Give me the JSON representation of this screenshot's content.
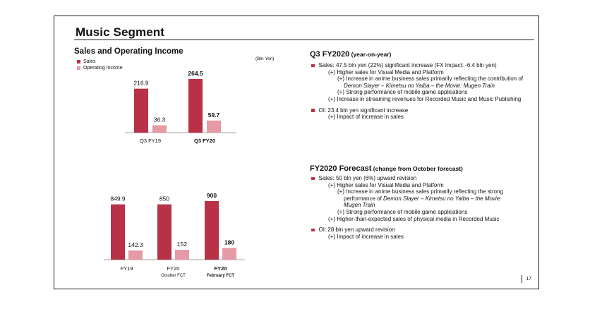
{
  "slide": {
    "title": "Music Segment",
    "section_title": "Sales and Operating Income",
    "unit": "(Bln Yen)",
    "page_number": "17"
  },
  "legend": [
    {
      "label": "Sales",
      "color": "#b83146"
    },
    {
      "label": "Operating Income",
      "color": "#e59aa5"
    }
  ],
  "chart_data": [
    {
      "type": "bar",
      "categories": [
        "Q3 FY19",
        "Q3 FY20"
      ],
      "category_bold": [
        false,
        true
      ],
      "series": [
        {
          "name": "Sales",
          "values": [
            216.9,
            264.5
          ],
          "labels": [
            "216.9",
            "264.5"
          ],
          "color": "#b83146"
        },
        {
          "name": "Operating Income",
          "values": [
            36.3,
            59.7
          ],
          "labels": [
            "36.3",
            "59.7"
          ],
          "color": "#e59aa5"
        }
      ]
    },
    {
      "type": "bar",
      "categories": [
        "FY19",
        "FY20",
        "FY20"
      ],
      "category_sub": [
        "",
        "October FCT",
        "February FCT"
      ],
      "category_bold": [
        false,
        false,
        true
      ],
      "series": [
        {
          "name": "Sales",
          "values": [
            849.9,
            850,
            900
          ],
          "labels": [
            "849.9",
            "850",
            "900"
          ],
          "color": "#b83146"
        },
        {
          "name": "Operating Income",
          "values": [
            142.3,
            152,
            180
          ],
          "labels": [
            "142.3",
            "152",
            "180"
          ],
          "color": "#e59aa5"
        }
      ]
    }
  ],
  "q3": {
    "head": "Q3 FY2020",
    "head_sub": " (year-on-year)",
    "b1": "Sales: 47.5 bln yen (22%) significant increase (FX Impact: -6.4 bln yen)",
    "b1_1": "(+) Higher sales for Visual Media and Platform",
    "b1_1a": "(+) Increase in anime business sales primarily reflecting the contribution of",
    "b1_1a_cont": "Demon Slayer – Kimetsu no Yaiba – the Movie: Mugen Train",
    "b1_1b": "(+) Strong performance of mobile game applications",
    "b1_2": "(+) Increase in streaming revenues for Recorded Music and Music Publishing",
    "b2": "OI: 23.4 bln yen significant increase",
    "b2_1": "(+) Impact of increase in sales"
  },
  "fcst": {
    "head": "FY2020 Forecast",
    "head_sub": " (change from October forecast)",
    "b1": "Sales: 50 bln yen (6%) upward revision",
    "b1_1": "(+) Higher sales for Visual Media and Platform",
    "b1_1a": "(+) Increase in anime business sales primarily reflecting the strong",
    "b1_1a_cont_pre": "performance of ",
    "b1_1a_cont_it": "Demon Slayer – Kimetsu no Yaiba – the Movie:",
    "b1_1a_cont2": "Mugen Train",
    "b1_1b": "(+) Strong performance of mobile game applications",
    "b1_2": "(+) Higher-than-expected sales of physical media in Recorded Music",
    "b2": "OI: 28 bln yen upward revision",
    "b2_1": "(+) Impact of increase in sales"
  }
}
